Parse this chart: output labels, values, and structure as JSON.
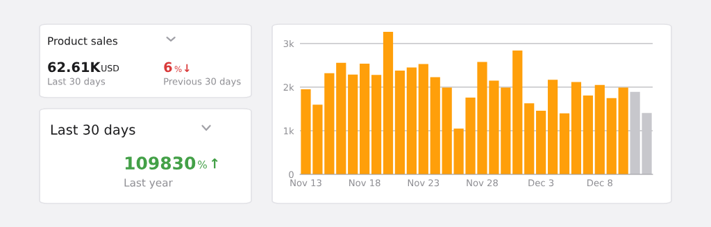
{
  "chart_data": [
    {
      "type": "other",
      "title": "Product sales",
      "annotations": [
        "62.61K",
        "USD",
        "Last 30 days",
        "6",
        "%",
        "↓",
        "Previous 30 days"
      ]
    },
    {
      "type": "other",
      "title": "Last 30 days",
      "annotations": [
        "109830",
        "%",
        "↑",
        "Last year"
      ]
    },
    {
      "type": "bar",
      "categories": [
        "Nov 13",
        null,
        null,
        null,
        null,
        "Nov 18",
        null,
        null,
        null,
        null,
        "Nov 23",
        null,
        null,
        null,
        null,
        "Nov 28",
        null,
        null,
        null,
        null,
        "Dec 3",
        null,
        null,
        null,
        null,
        "Dec 8",
        null,
        null,
        null,
        null
      ],
      "values": [
        1950,
        1600,
        2320,
        2560,
        2290,
        2540,
        2280,
        3270,
        2380,
        2450,
        2530,
        2230,
        1990,
        1050,
        1760,
        2580,
        2150,
        1990,
        2840,
        1630,
        1460,
        2170,
        1400,
        2120,
        1810,
        2050,
        1750,
        1990,
        1890,
        1410
      ],
      "colors": [
        "#ff9f0a",
        "#ff9f0a",
        "#ff9f0a",
        "#ff9f0a",
        "#ff9f0a",
        "#ff9f0a",
        "#ff9f0a",
        "#ff9f0a",
        "#ff9f0a",
        "#ff9f0a",
        "#ff9f0a",
        "#ff9f0a",
        "#ff9f0a",
        "#ff9f0a",
        "#ff9f0a",
        "#ff9f0a",
        "#ff9f0a",
        "#ff9f0a",
        "#ff9f0a",
        "#ff9f0a",
        "#ff9f0a",
        "#ff9f0a",
        "#ff9f0a",
        "#ff9f0a",
        "#ff9f0a",
        "#ff9f0a",
        "#ff9f0a",
        "#ff9f0a",
        "#c7c7cc",
        "#c7c7cc"
      ],
      "ylim": [
        0,
        3300
      ],
      "yticks": [
        {
          "value": 0,
          "label": "0"
        },
        {
          "value": 1000,
          "label": "1k"
        },
        {
          "value": 2000,
          "label": "2k"
        },
        {
          "value": 3000,
          "label": "3k"
        }
      ],
      "grid": "y"
    }
  ]
}
